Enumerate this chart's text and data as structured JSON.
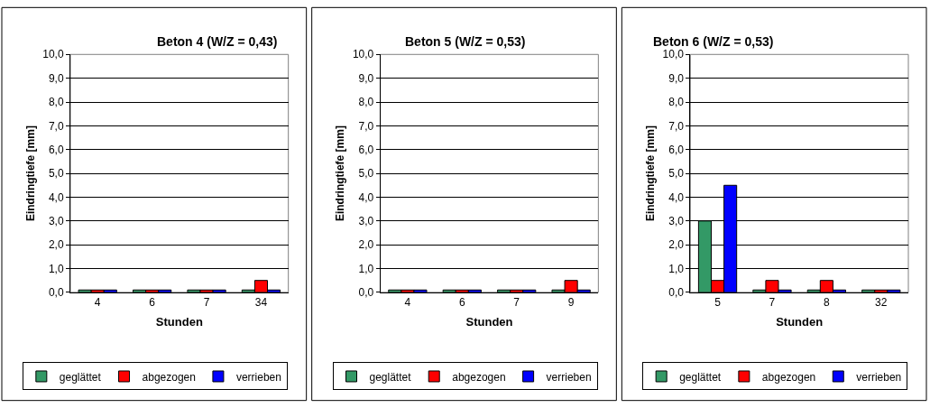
{
  "chart_data": [
    {
      "type": "bar",
      "title": "Beton 4 (W/Z = 0,43)",
      "xlabel": "Stunden",
      "ylabel": "Eindringtiefe [mm]",
      "categories": [
        "4",
        "6",
        "7",
        "34"
      ],
      "series": [
        {
          "name": "geglättet",
          "color": "#339966",
          "values": [
            0.1,
            0.1,
            0.1,
            0.1
          ]
        },
        {
          "name": "abgezogen",
          "color": "#ff0000",
          "values": [
            0.1,
            0.1,
            0.1,
            0.5
          ]
        },
        {
          "name": "verrieben",
          "color": "#0000ff",
          "values": [
            0.1,
            0.1,
            0.1,
            0.1
          ]
        }
      ],
      "ylim": [
        0,
        10
      ],
      "yticks": [
        {
          "value": 0,
          "label": "0,0"
        },
        {
          "value": 1,
          "label": "1,0"
        },
        {
          "value": 2,
          "label": "2,0"
        },
        {
          "value": 3,
          "label": "3,0"
        },
        {
          "value": 4,
          "label": "4,0"
        },
        {
          "value": 5,
          "label": "5,0"
        },
        {
          "value": 6,
          "label": "6,0"
        },
        {
          "value": 7,
          "label": "7,0"
        },
        {
          "value": 8,
          "label": "8,0"
        },
        {
          "value": 9,
          "label": "9,0"
        },
        {
          "value": 10,
          "label": "10,0"
        }
      ],
      "grid": "y",
      "legend": "bottom"
    },
    {
      "type": "bar",
      "title": "Beton 5 (W/Z = 0,53)",
      "xlabel": "Stunden",
      "ylabel": "Eindringtiefe [mm]",
      "categories": [
        "4",
        "6",
        "7",
        "9"
      ],
      "series": [
        {
          "name": "geglättet",
          "color": "#339966",
          "values": [
            0.1,
            0.1,
            0.1,
            0.1
          ]
        },
        {
          "name": "abgezogen",
          "color": "#ff0000",
          "values": [
            0.1,
            0.1,
            0.1,
            0.5
          ]
        },
        {
          "name": "verrieben",
          "color": "#0000ff",
          "values": [
            0.1,
            0.1,
            0.1,
            0.1
          ]
        }
      ],
      "ylim": [
        0,
        10
      ],
      "yticks": [
        {
          "value": 0,
          "label": "0,0"
        },
        {
          "value": 1,
          "label": "1,0"
        },
        {
          "value": 2,
          "label": "2,0"
        },
        {
          "value": 3,
          "label": "3,0"
        },
        {
          "value": 4,
          "label": "4,0"
        },
        {
          "value": 5,
          "label": "5,0"
        },
        {
          "value": 6,
          "label": "6,0"
        },
        {
          "value": 7,
          "label": "7,0"
        },
        {
          "value": 8,
          "label": "8,0"
        },
        {
          "value": 9,
          "label": "9,0"
        },
        {
          "value": 10,
          "label": "10,0"
        }
      ],
      "grid": "y",
      "legend": "bottom"
    },
    {
      "type": "bar",
      "title": "Beton 6 (W/Z = 0,53)",
      "xlabel": "Stunden",
      "ylabel": "Eindringtiefe [mm]",
      "categories": [
        "5",
        "7",
        "8",
        "32"
      ],
      "series": [
        {
          "name": "geglättet",
          "color": "#339966",
          "values": [
            3.0,
            0.1,
            0.1,
            0.1
          ]
        },
        {
          "name": "abgezogen",
          "color": "#ff0000",
          "values": [
            0.5,
            0.5,
            0.5,
            0.1
          ]
        },
        {
          "name": "verrieben",
          "color": "#0000ff",
          "values": [
            4.5,
            0.1,
            0.1,
            0.1
          ]
        }
      ],
      "ylim": [
        0,
        10
      ],
      "yticks": [
        {
          "value": 0,
          "label": "0,0"
        },
        {
          "value": 1,
          "label": "1,0"
        },
        {
          "value": 2,
          "label": "2,0"
        },
        {
          "value": 3,
          "label": "3,0"
        },
        {
          "value": 4,
          "label": "4,0"
        },
        {
          "value": 5,
          "label": "5,0"
        },
        {
          "value": 6,
          "label": "6,0"
        },
        {
          "value": 7,
          "label": "7,0"
        },
        {
          "value": 8,
          "label": "8,0"
        },
        {
          "value": 9,
          "label": "9,0"
        },
        {
          "value": 10,
          "label": "10,0"
        }
      ],
      "grid": "y",
      "legend": "bottom"
    }
  ]
}
